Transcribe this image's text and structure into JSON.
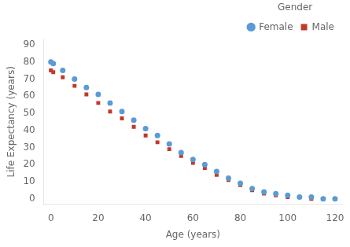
{
  "chart_data": {
    "type": "scatter",
    "xlabel": "Age (years)",
    "ylabel": "Life Expectancy (years)",
    "legend_title": "Gender",
    "x": [
      0,
      1,
      5,
      10,
      15,
      20,
      25,
      30,
      35,
      40,
      45,
      50,
      55,
      60,
      65,
      70,
      75,
      80,
      85,
      90,
      95,
      100,
      105,
      110,
      115,
      120
    ],
    "series": [
      {
        "name": "Female",
        "color": "#5b9bd5",
        "marker": "circle",
        "values": [
          80,
          79,
          75,
          70,
          65,
          61,
          56,
          51,
          46,
          41,
          37,
          32,
          27,
          23,
          20,
          16,
          12,
          9,
          6,
          4,
          3,
          2,
          1,
          1,
          0,
          0
        ]
      },
      {
        "name": "Male",
        "color": "#c0392b",
        "marker": "square",
        "values": [
          75,
          74,
          71,
          66,
          61,
          56,
          51,
          47,
          42,
          37,
          33,
          29,
          25,
          21,
          18,
          14,
          11,
          8,
          5,
          3,
          2,
          1,
          1,
          0,
          0,
          0
        ]
      }
    ],
    "xlim": [
      -3,
      123
    ],
    "ylim": [
      -3,
      93
    ],
    "xticks": [
      0,
      20,
      40,
      60,
      80,
      100,
      120
    ],
    "yticks": [
      0,
      10,
      20,
      30,
      40,
      50,
      60,
      70,
      80,
      90
    ],
    "grid": false,
    "legend": "upper right"
  }
}
